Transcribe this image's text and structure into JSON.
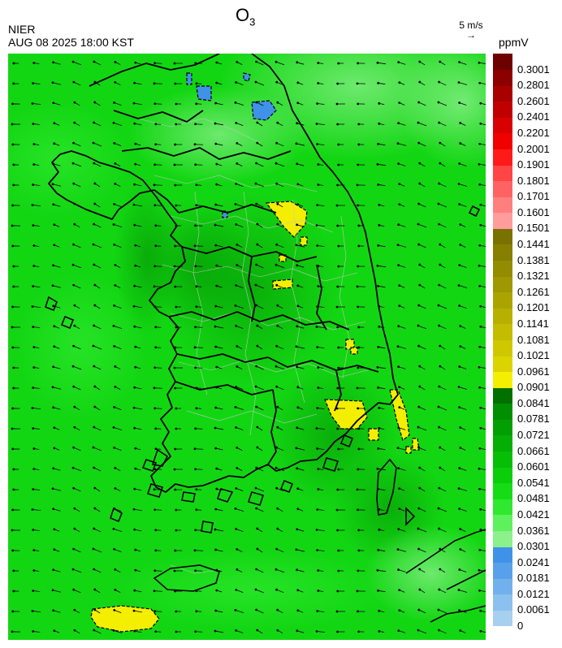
{
  "header": {
    "organization": "NIER",
    "timestamp": "AUG 08 2025 18:00 KST",
    "title_main": "O",
    "title_sub": "3"
  },
  "wind_reference": {
    "label": "5 m/s",
    "arrow": "→"
  },
  "colorbar": {
    "unit": "ppmV",
    "levels": [
      "0",
      "0.0061",
      "0.0121",
      "0.0181",
      "0.0241",
      "0.0301",
      "0.0361",
      "0.0421",
      "0.0481",
      "0.0541",
      "0.0601",
      "0.0661",
      "0.0721",
      "0.0781",
      "0.0841",
      "0.0901",
      "0.0961",
      "0.1021",
      "0.1081",
      "0.1141",
      "0.1201",
      "0.1261",
      "0.1321",
      "0.1381",
      "0.1441",
      "0.1501",
      "0.1601",
      "0.1701",
      "0.1801",
      "0.1901",
      "0.2001",
      "0.2201",
      "0.2401",
      "0.2601",
      "0.2801",
      "0.3001"
    ],
    "colors": [
      "#a7cff0",
      "#8cc0ee",
      "#72b0ec",
      "#58a1ea",
      "#3f92e8",
      "#8cf08c",
      "#5df25d",
      "#2fe82f",
      "#16dc16",
      "#0ace0a",
      "#06be06",
      "#04ae04",
      "#039e03",
      "#028e02",
      "#017001",
      "#f4ee00",
      "#dbd400",
      "#cfc800",
      "#c3bc00",
      "#b7b000",
      "#aba400",
      "#9f9800",
      "#938c00",
      "#877f00",
      "#7a7200",
      "#ff9c9c",
      "#ff7f7f",
      "#ff6262",
      "#ff4545",
      "#ff1a1a",
      "#f00000",
      "#d80000",
      "#c00000",
      "#a80000",
      "#8c0000",
      "#6e0000"
    ]
  },
  "map": {
    "background_color": "#13d613",
    "hotspot_color": "#f4ee00",
    "low_color": "#3f92e8",
    "boundary_color": "#000000",
    "district_color": "#c8c8c8",
    "wind_field": {
      "u": -4,
      "v": 1
    }
  }
}
